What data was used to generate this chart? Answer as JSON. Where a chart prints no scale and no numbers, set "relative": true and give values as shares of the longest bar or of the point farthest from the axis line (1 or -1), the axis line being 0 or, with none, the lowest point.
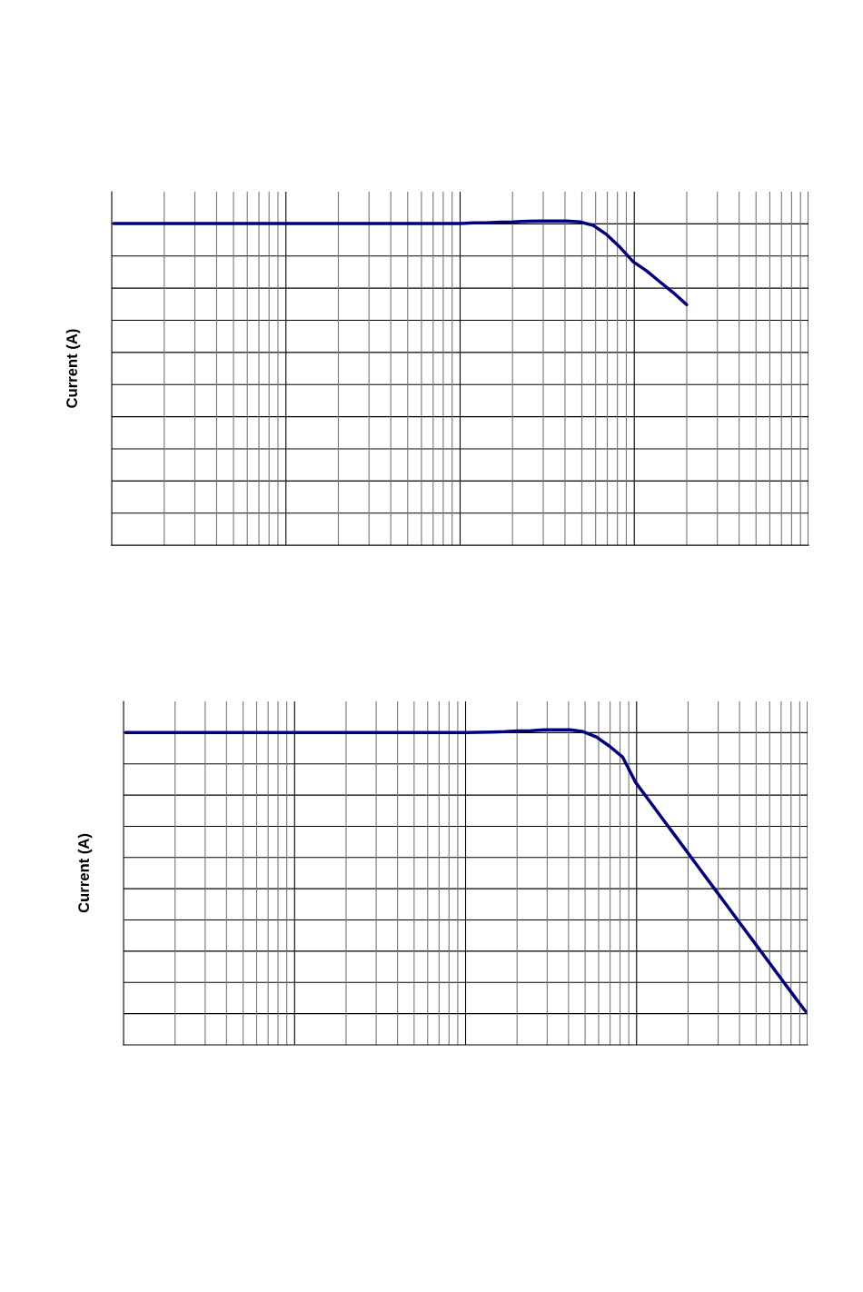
{
  "chart_data": [
    {
      "type": "line",
      "ylabel": "Current (A)",
      "relative": true,
      "grid": true,
      "marker": "none",
      "line_style": "solid",
      "categories": [
        null,
        null,
        null,
        null,
        null,
        null,
        null,
        null,
        null,
        null,
        null,
        null,
        null,
        null,
        null,
        null,
        null,
        null,
        null,
        null,
        null,
        null,
        null,
        null,
        null,
        null,
        null,
        null,
        null,
        null,
        null,
        null,
        null,
        null,
        null,
        null,
        null,
        null,
        null,
        null,
        null,
        null,
        null,
        null,
        null,
        null,
        null,
        null,
        null,
        null,
        null,
        null,
        null
      ],
      "series": [
        {
          "color": "#000080",
          "values": [
            0.992,
            0.992,
            0.992,
            0.992,
            0.992,
            0.992,
            0.992,
            0.992,
            0.992,
            0.992,
            0.992,
            0.992,
            0.992,
            0.992,
            0.992,
            0.992,
            0.992,
            0.992,
            0.992,
            0.992,
            0.992,
            0.992,
            0.992,
            0.992,
            0.992,
            0.992,
            0.992,
            0.994,
            0.994,
            0.996,
            0.997,
            0.999,
            1,
            1,
            1,
            0.997,
            0.986,
            0.958,
            0.919,
            0.874,
            0.846,
            0.812,
            0.779,
            0.742,
            null,
            null,
            null,
            null,
            null,
            null,
            null,
            null,
            null
          ]
        }
      ]
    },
    {
      "type": "line",
      "ylabel": "Current (A)",
      "relative": true,
      "grid": true,
      "marker": "none",
      "line_style": "solid",
      "categories": [
        null,
        null,
        null,
        null,
        null,
        null,
        null,
        null,
        null,
        null,
        null,
        null,
        null,
        null,
        null,
        null,
        null,
        null,
        null,
        null,
        null,
        null,
        null,
        null,
        null,
        null,
        null,
        null,
        null,
        null,
        null,
        null,
        null,
        null,
        null,
        null,
        null,
        null,
        null,
        null,
        null,
        null,
        null,
        null,
        null,
        null,
        null,
        null,
        null,
        null,
        null,
        null,
        null
      ],
      "series": [
        {
          "color": "#000080",
          "values": [
            0.991,
            0.991,
            0.991,
            0.991,
            0.991,
            0.991,
            0.991,
            0.991,
            0.991,
            0.991,
            0.991,
            0.991,
            0.991,
            0.991,
            0.991,
            0.991,
            0.991,
            0.991,
            0.991,
            0.991,
            0.991,
            0.991,
            0.991,
            0.991,
            0.991,
            0.991,
            0.991,
            0.992,
            0.993,
            0.994,
            0.996,
            0.997,
            1,
            1,
            1,
            0.994,
            0.977,
            0.948,
            0.914,
            0.833,
            0.777,
            0.721,
            0.665,
            0.609,
            0.553,
            0.497,
            0.441,
            0.385,
            0.329,
            0.273,
            0.217,
            0.161,
            0.106
          ]
        }
      ]
    }
  ]
}
